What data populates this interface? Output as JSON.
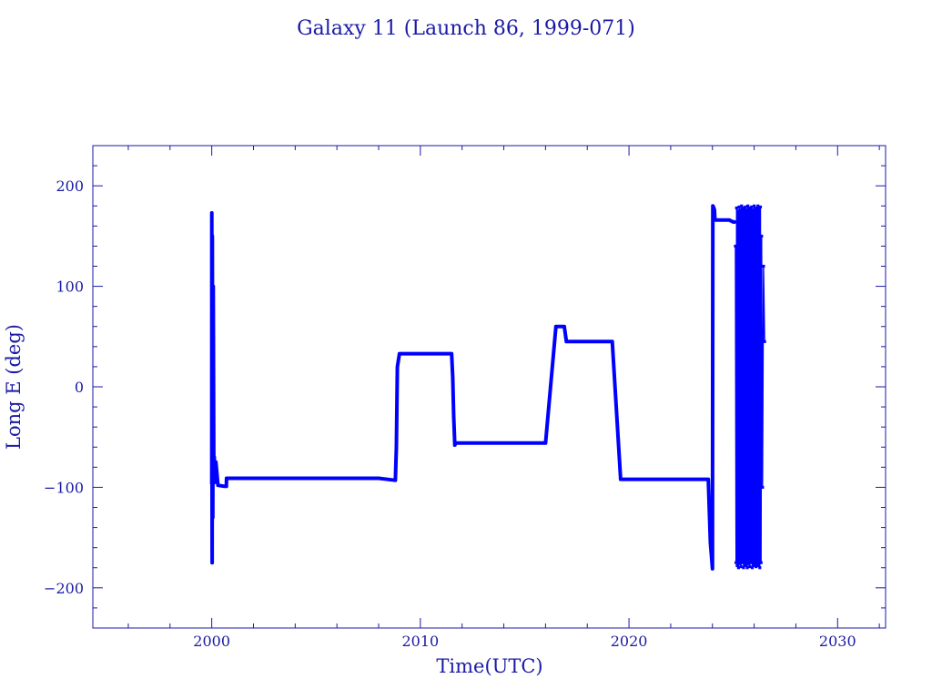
{
  "chart_data": {
    "type": "line",
    "title": "Galaxy 11 (Launch 86, 1999-071)",
    "xlabel": "Time(UTC)",
    "ylabel": "Long E (deg)",
    "xlim": [
      1994.3,
      2032.3
    ],
    "ylim": [
      -240,
      240
    ],
    "x_ticks": [
      2000,
      2010,
      2020,
      2030
    ],
    "y_ticks": [
      200,
      100,
      0,
      -100,
      -200
    ],
    "x_tick_labels": [
      "2000",
      "2010",
      "2020",
      "2030"
    ],
    "y_tick_labels": [
      "200",
      "100",
      "0",
      "−100",
      "−200"
    ],
    "grid": false,
    "colors": {
      "axes": "#1a1aa6",
      "series": "#0000ff"
    },
    "series": [
      {
        "x": [
          2000.0,
          2000.0,
          2000.02,
          2000.03,
          2000.05,
          2000.07,
          2000.1,
          2000.12,
          2000.15,
          2000.2,
          2000.3,
          2000.6,
          2000.7,
          2000.71,
          2001,
          2002,
          2004,
          2006,
          2008,
          2008.8,
          2008.85,
          2008.9,
          2009.0,
          2010,
          2011.0,
          2011.5,
          2011.55,
          2011.6,
          2011.65,
          2011.7,
          2012,
          2014,
          2016.0,
          2016.5,
          2016.9,
          2017.0,
          2018,
          2019.2,
          2019.6,
          2020,
          2022,
          2023.5,
          2023.8,
          2023.9,
          2024.0,
          2024.02,
          2024.05,
          2024.1,
          2024.12,
          2024.15,
          2024.4,
          2024.8,
          2025.0,
          2025.1
        ],
        "y": [
          -97,
          173,
          -175,
          150,
          -130,
          100,
          -80,
          -70,
          -95,
          -75,
          -98,
          -99,
          -99,
          -91,
          -91,
          -91,
          -91,
          -91,
          -91,
          -93,
          -60,
          20,
          33,
          33,
          33,
          33,
          10,
          -30,
          -58,
          -56,
          -56,
          -56,
          -56,
          60,
          60,
          45,
          45,
          45,
          -92,
          -92,
          -92,
          -92,
          -92,
          -155,
          -181,
          180,
          179,
          176,
          166,
          166,
          166,
          166,
          164,
          164
        ]
      },
      {
        "x": [
          2025.1,
          2025.13,
          2025.16,
          2025.19,
          2025.22,
          2025.25,
          2025.28,
          2025.31,
          2025.34,
          2025.37,
          2025.4,
          2025.43,
          2025.46,
          2025.49,
          2025.52,
          2025.55,
          2025.58,
          2025.61,
          2025.64,
          2025.67,
          2025.7,
          2025.73,
          2025.76,
          2025.79,
          2025.82,
          2025.85,
          2025.88,
          2025.91,
          2025.94,
          2025.97,
          2026.0,
          2026.03,
          2026.06,
          2026.09,
          2026.12,
          2026.15,
          2026.18,
          2026.21,
          2026.24,
          2026.27,
          2026.3,
          2026.33,
          2026.36,
          2026.4,
          2026.45,
          2026.5
        ],
        "y": [
          140,
          -175,
          178,
          -178,
          175,
          -180,
          179,
          -176,
          176,
          -179,
          180,
          -175,
          177,
          -180,
          178,
          -177,
          179,
          -178,
          176,
          -180,
          180,
          -176,
          177,
          -179,
          178,
          -175,
          179,
          -180,
          176,
          -177,
          180,
          -178,
          177,
          -179,
          178,
          -176,
          180,
          -178,
          177,
          -180,
          179,
          -175,
          150,
          -100,
          120,
          45
        ]
      }
    ]
  }
}
